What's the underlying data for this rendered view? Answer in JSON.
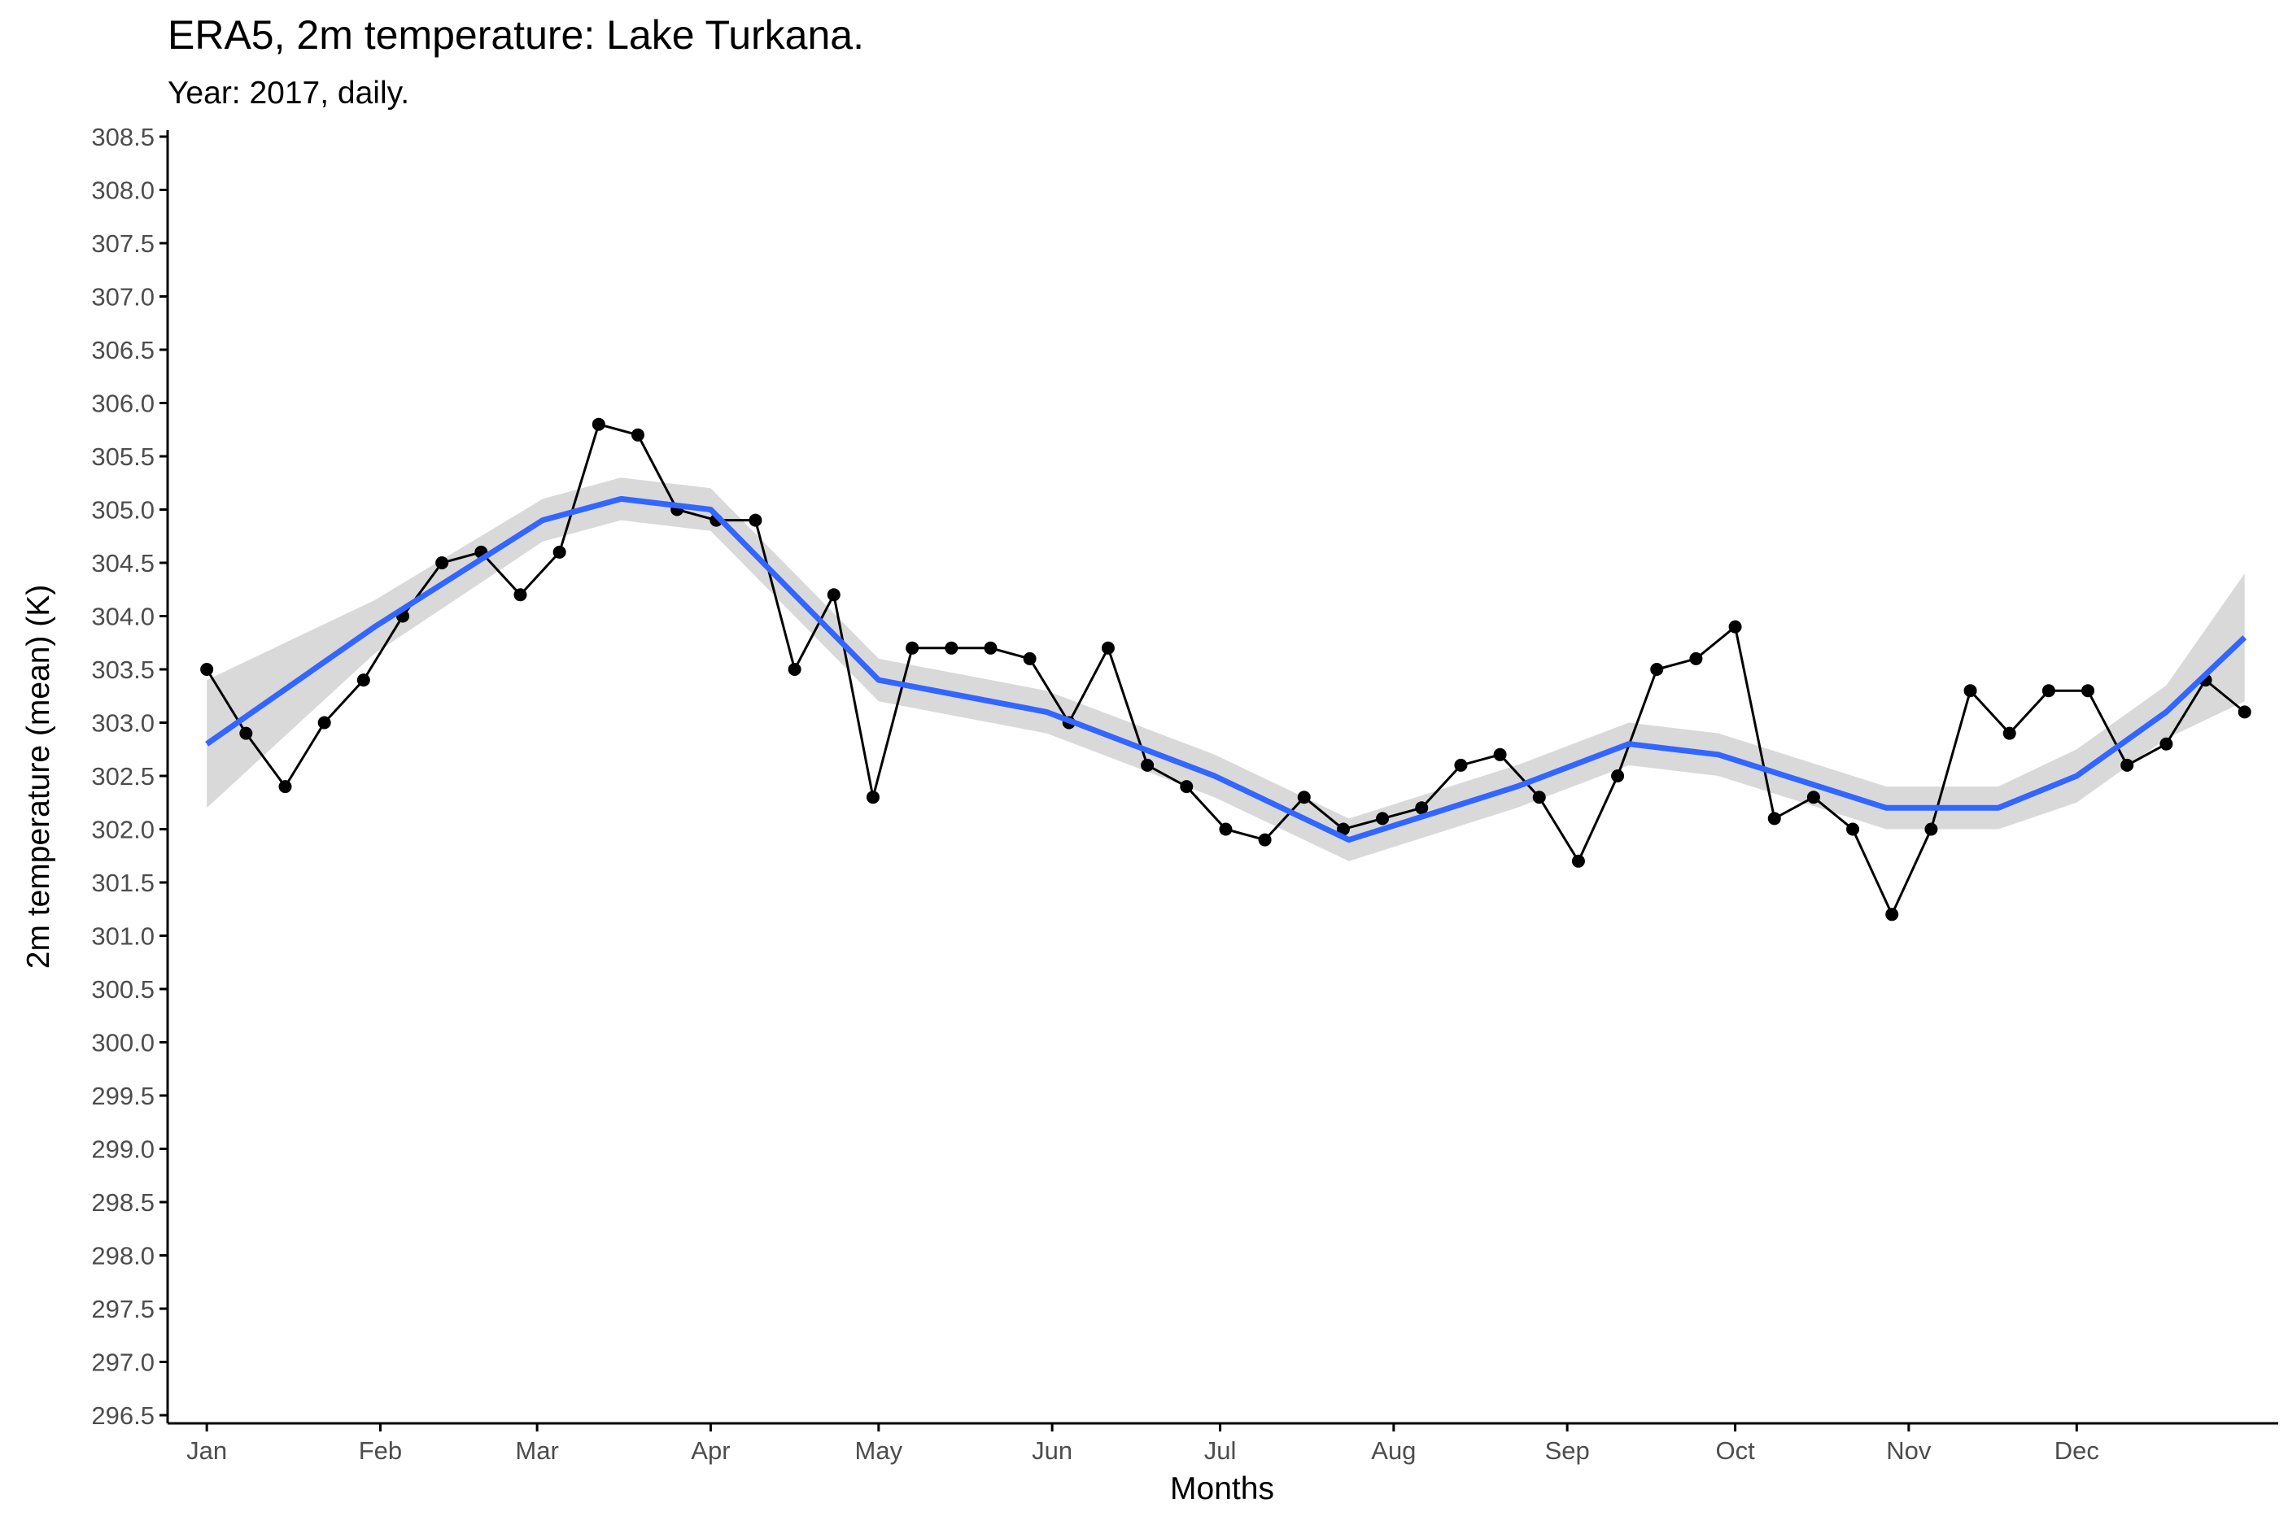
{
  "chart_data": {
    "type": "line",
    "title": "ERA5, 2m temperature: Lake Turkana.",
    "subtitle": "Year: 2017, daily.",
    "xlabel": "Months",
    "ylabel": "2m temperature (mean) (K)",
    "x_ticks": [
      "Jan",
      "Feb",
      "Mar",
      "Apr",
      "May",
      "Jun",
      "Jul",
      "Aug",
      "Sep",
      "Oct",
      "Nov",
      "Dec"
    ],
    "y_ticks": [
      "296.5",
      "297.0",
      "297.5",
      "298.0",
      "298.5",
      "299.0",
      "299.5",
      "300.0",
      "300.5",
      "301.0",
      "301.5",
      "302.0",
      "302.5",
      "303.0",
      "303.5",
      "304.0",
      "304.5",
      "305.0",
      "305.5",
      "306.0",
      "306.5",
      "307.0",
      "307.5",
      "308.0",
      "308.5"
    ],
    "ylim": [
      296.5,
      308.5
    ],
    "xlim_day": [
      -6,
      371
    ],
    "grid": false,
    "colors": {
      "points": "#000000",
      "line": "#000000",
      "smooth": "#3366ff",
      "band": "#d9d9d9",
      "axis": "#000000",
      "tick_label": "#4d4d4d"
    },
    "series": [
      {
        "type": "daily",
        "x_day_of_year": [
          1,
          8,
          15,
          22,
          29,
          36,
          43,
          50,
          57,
          64,
          71,
          78,
          85,
          92,
          99,
          106,
          113,
          120,
          127,
          134,
          141,
          148,
          155,
          162,
          169,
          176,
          183,
          190,
          197,
          204,
          211,
          218,
          225,
          232,
          239,
          246,
          253,
          260,
          267,
          274,
          281,
          288,
          295,
          302,
          309,
          316,
          323,
          330,
          337,
          344,
          351,
          358,
          365
        ],
        "values": [
          303.5,
          302.9,
          302.4,
          303.0,
          303.4,
          304.0,
          304.5,
          304.6,
          304.2,
          304.6,
          305.8,
          305.7,
          305.0,
          304.9,
          304.9,
          303.5,
          304.2,
          302.3,
          303.7,
          303.7,
          303.7,
          303.6,
          303.0,
          303.7,
          302.6,
          302.4,
          302.0,
          301.9,
          302.3,
          302.0,
          302.1,
          302.2,
          302.6,
          302.7,
          302.3,
          301.7,
          302.5,
          303.5,
          303.6,
          303.9,
          302.1,
          302.3,
          302.0,
          301.2,
          302.0,
          303.3,
          302.9,
          303.3,
          303.3,
          302.6,
          302.8,
          303.4,
          303.1
        ]
      },
      {
        "type": "smooth",
        "x_day_of_year": [
          1,
          31,
          61,
          75,
          91,
          121,
          151,
          181,
          205,
          235,
          255,
          271,
          301,
          321,
          335,
          351,
          365
        ],
        "values": [
          302.8,
          303.9,
          304.9,
          305.1,
          305.0,
          303.4,
          303.1,
          302.5,
          301.9,
          302.4,
          302.8,
          302.7,
          302.2,
          302.2,
          302.5,
          303.1,
          303.8
        ],
        "band_halfwidth": [
          0.6,
          0.25,
          0.2,
          0.2,
          0.2,
          0.2,
          0.2,
          0.2,
          0.2,
          0.2,
          0.2,
          0.2,
          0.2,
          0.2,
          0.25,
          0.25,
          0.6
        ]
      }
    ]
  }
}
